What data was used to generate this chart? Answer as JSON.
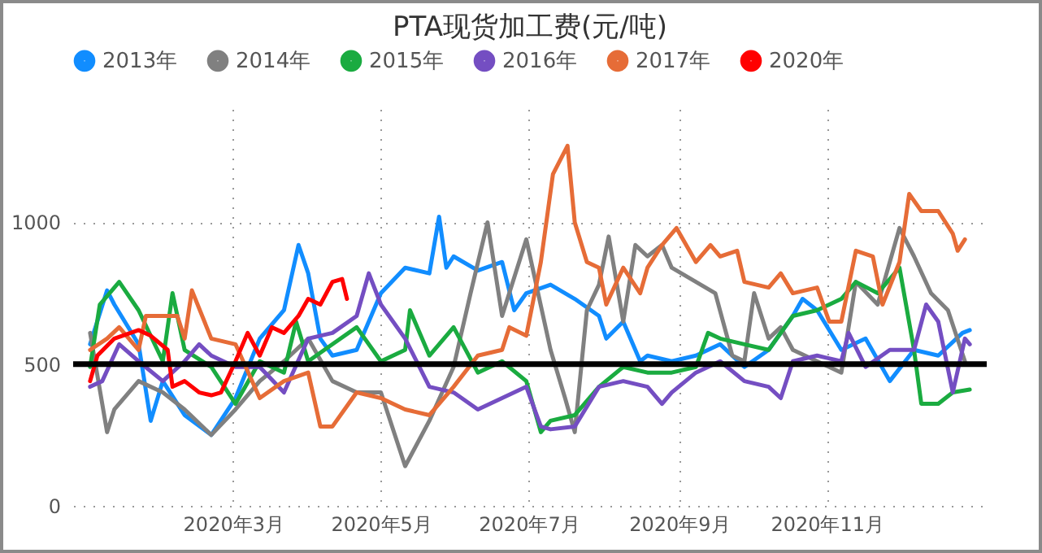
{
  "chart_data": {
    "type": "line",
    "title": "PTA现货加工费(元/吨)",
    "xlim": [
      "2019-12-26",
      "2021-01-06"
    ],
    "xticks": [
      {
        "value": "2020-03-01",
        "label": "2020年3月"
      },
      {
        "value": "2020-05-01",
        "label": "2020年5月"
      },
      {
        "value": "2020-07-01",
        "label": "2020年7月"
      },
      {
        "value": "2020-09-01",
        "label": "2020年9月"
      },
      {
        "value": "2020-11-01",
        "label": "2020年11月"
      }
    ],
    "ylim": [
      0,
      1400
    ],
    "yticks": [
      0,
      500,
      1000
    ],
    "grid": true,
    "legend": "top left",
    "marker": "none",
    "line_style": "solid",
    "ref_lines": [
      {
        "axis": "y",
        "value": 500,
        "color": "#000000"
      }
    ],
    "series": [
      {
        "name": "2013年",
        "color": "#118dff",
        "x": [
          "2020-01-02",
          "2020-01-09",
          "2020-01-12",
          "2020-01-22",
          "2020-01-27",
          "2020-02-01",
          "2020-02-10",
          "2020-02-21",
          "2020-03-02",
          "2020-03-12",
          "2020-03-22",
          "2020-03-28",
          "2020-04-01",
          "2020-04-06",
          "2020-04-11",
          "2020-04-21",
          "2020-05-01",
          "2020-05-11",
          "2020-05-21",
          "2020-05-25",
          "2020-05-28",
          "2020-05-31",
          "2020-06-10",
          "2020-06-20",
          "2020-06-25",
          "2020-06-30",
          "2020-07-10",
          "2020-07-20",
          "2020-07-30",
          "2020-08-02",
          "2020-08-09",
          "2020-08-16",
          "2020-08-19",
          "2020-08-29",
          "2020-09-08",
          "2020-09-18",
          "2020-09-28",
          "2020-10-08",
          "2020-10-18",
          "2020-10-22",
          "2020-10-28",
          "2020-11-07",
          "2020-11-17",
          "2020-11-27",
          "2020-12-07",
          "2020-12-17",
          "2020-12-27",
          "2020-12-30"
        ],
        "values": [
          570,
          760,
          710,
          570,
          300,
          440,
          320,
          250,
          380,
          590,
          690,
          920,
          820,
          590,
          530,
          550,
          750,
          840,
          820,
          1020,
          840,
          880,
          830,
          860,
          690,
          750,
          780,
          730,
          670,
          590,
          650,
          510,
          530,
          510,
          530,
          570,
          490,
          550,
          670,
          730,
          690,
          550,
          590,
          440,
          550,
          530,
          610,
          620
        ]
      },
      {
        "name": "2014年",
        "color": "#808080",
        "x": [
          "2020-01-02",
          "2020-01-09",
          "2020-01-12",
          "2020-01-22",
          "2020-02-01",
          "2020-02-10",
          "2020-02-21",
          "2020-03-02",
          "2020-03-12",
          "2020-03-22",
          "2020-04-01",
          "2020-04-11",
          "2020-04-21",
          "2020-05-01",
          "2020-05-11",
          "2020-05-21",
          "2020-05-31",
          "2020-06-07",
          "2020-06-14",
          "2020-06-20",
          "2020-06-30",
          "2020-07-10",
          "2020-07-16",
          "2020-07-20",
          "2020-07-25",
          "2020-07-30",
          "2020-08-03",
          "2020-08-09",
          "2020-08-14",
          "2020-08-19",
          "2020-08-25",
          "2020-08-29",
          "2020-09-08",
          "2020-09-16",
          "2020-09-23",
          "2020-09-28",
          "2020-10-02",
          "2020-10-08",
          "2020-10-13",
          "2020-10-18",
          "2020-10-28",
          "2020-11-07",
          "2020-11-13",
          "2020-11-22",
          "2020-12-01",
          "2020-12-07",
          "2020-12-14",
          "2020-12-21",
          "2020-12-28"
        ],
        "values": [
          610,
          260,
          340,
          440,
          400,
          340,
          250,
          340,
          440,
          510,
          590,
          440,
          400,
          400,
          140,
          300,
          490,
          750,
          1000,
          670,
          940,
          550,
          380,
          260,
          690,
          780,
          950,
          650,
          920,
          880,
          920,
          840,
          790,
          750,
          530,
          510,
          750,
          590,
          630,
          550,
          510,
          470,
          790,
          710,
          980,
          880,
          750,
          690,
          510
        ]
      },
      {
        "name": "2015年",
        "color": "#1aab40",
        "x": [
          "2020-01-02",
          "2020-01-06",
          "2020-01-14",
          "2020-01-22",
          "2020-02-01",
          "2020-02-05",
          "2020-02-10",
          "2020-02-21",
          "2020-03-02",
          "2020-03-12",
          "2020-03-22",
          "2020-03-27",
          "2020-04-01",
          "2020-04-11",
          "2020-04-21",
          "2020-05-01",
          "2020-05-11",
          "2020-05-13",
          "2020-05-21",
          "2020-05-31",
          "2020-06-10",
          "2020-06-20",
          "2020-06-30",
          "2020-07-06",
          "2020-07-10",
          "2020-07-20",
          "2020-07-30",
          "2020-08-09",
          "2020-08-19",
          "2020-08-29",
          "2020-09-08",
          "2020-09-13",
          "2020-09-18",
          "2020-09-28",
          "2020-10-08",
          "2020-10-18",
          "2020-10-28",
          "2020-11-07",
          "2020-11-13",
          "2020-11-22",
          "2020-12-01",
          "2020-12-07",
          "2020-12-10",
          "2020-12-17",
          "2020-12-23",
          "2020-12-30"
        ],
        "values": [
          490,
          710,
          790,
          690,
          510,
          750,
          550,
          490,
          360,
          510,
          470,
          650,
          510,
          570,
          630,
          510,
          550,
          690,
          530,
          630,
          470,
          510,
          440,
          260,
          300,
          320,
          420,
          490,
          470,
          470,
          490,
          610,
          590,
          570,
          550,
          670,
          690,
          730,
          790,
          750,
          840,
          550,
          360,
          360,
          400,
          410
        ]
      },
      {
        "name": "2016年",
        "color": "#744ec2",
        "x": [
          "2020-01-02",
          "2020-01-07",
          "2020-01-14",
          "2020-01-22",
          "2020-02-01",
          "2020-02-10",
          "2020-02-16",
          "2020-02-21",
          "2020-03-02",
          "2020-03-12",
          "2020-03-22",
          "2020-04-01",
          "2020-04-11",
          "2020-04-21",
          "2020-04-26",
          "2020-05-01",
          "2020-05-11",
          "2020-05-21",
          "2020-05-31",
          "2020-06-10",
          "2020-06-20",
          "2020-06-30",
          "2020-07-06",
          "2020-07-10",
          "2020-07-20",
          "2020-07-30",
          "2020-08-09",
          "2020-08-19",
          "2020-08-25",
          "2020-08-29",
          "2020-09-08",
          "2020-09-18",
          "2020-09-28",
          "2020-10-08",
          "2020-10-13",
          "2020-10-18",
          "2020-10-28",
          "2020-11-07",
          "2020-11-10",
          "2020-11-17",
          "2020-11-27",
          "2020-12-07",
          "2020-12-12",
          "2020-12-17",
          "2020-12-23",
          "2020-12-28",
          "2020-12-30"
        ],
        "values": [
          420,
          440,
          570,
          510,
          440,
          510,
          570,
          530,
          490,
          490,
          400,
          590,
          610,
          670,
          820,
          710,
          590,
          420,
          400,
          340,
          380,
          420,
          280,
          270,
          280,
          420,
          440,
          420,
          360,
          400,
          470,
          510,
          440,
          420,
          380,
          510,
          530,
          510,
          610,
          490,
          550,
          550,
          710,
          650,
          400,
          590,
          570
        ]
      },
      {
        "name": "2017年",
        "color": "#e66c37",
        "x": [
          "2020-01-02",
          "2020-01-09",
          "2020-01-14",
          "2020-01-22",
          "2020-01-25",
          "2020-02-01",
          "2020-02-07",
          "2020-02-10",
          "2020-02-13",
          "2020-02-21",
          "2020-03-02",
          "2020-03-12",
          "2020-03-22",
          "2020-04-01",
          "2020-04-06",
          "2020-04-11",
          "2020-04-21",
          "2020-05-01",
          "2020-05-11",
          "2020-05-21",
          "2020-05-31",
          "2020-06-10",
          "2020-06-20",
          "2020-06-23",
          "2020-06-30",
          "2020-07-06",
          "2020-07-11",
          "2020-07-17",
          "2020-07-20",
          "2020-07-25",
          "2020-07-30",
          "2020-08-02",
          "2020-08-09",
          "2020-08-16",
          "2020-08-19",
          "2020-08-25",
          "2020-08-31",
          "2020-09-08",
          "2020-09-14",
          "2020-09-18",
          "2020-09-25",
          "2020-09-28",
          "2020-10-08",
          "2020-10-13",
          "2020-10-18",
          "2020-10-28",
          "2020-11-02",
          "2020-11-07",
          "2020-11-13",
          "2020-11-20",
          "2020-11-24",
          "2020-12-01",
          "2020-12-05",
          "2020-12-10",
          "2020-12-17",
          "2020-12-23",
          "2020-12-25",
          "2020-12-28"
        ],
        "values": [
          550,
          590,
          630,
          550,
          670,
          670,
          670,
          590,
          760,
          590,
          570,
          380,
          440,
          470,
          280,
          280,
          400,
          380,
          340,
          320,
          420,
          530,
          550,
          630,
          600,
          860,
          1170,
          1270,
          1000,
          860,
          840,
          710,
          840,
          750,
          840,
          920,
          980,
          860,
          920,
          880,
          900,
          790,
          770,
          820,
          750,
          770,
          650,
          650,
          900,
          880,
          710,
          860,
          1100,
          1040,
          1040,
          960,
          900,
          940
        ]
      },
      {
        "name": "2020年",
        "color": "#ff0000",
        "x": [
          "2020-01-02",
          "2020-01-05",
          "2020-01-12",
          "2020-01-22",
          "2020-01-27",
          "2020-02-03",
          "2020-02-05",
          "2020-02-10",
          "2020-02-16",
          "2020-02-21",
          "2020-02-25",
          "2020-03-02",
          "2020-03-07",
          "2020-03-12",
          "2020-03-17",
          "2020-03-22",
          "2020-03-28",
          "2020-04-01",
          "2020-04-06",
          "2020-04-11",
          "2020-04-15",
          "2020-04-17"
        ],
        "values": [
          440,
          530,
          590,
          620,
          600,
          550,
          420,
          440,
          400,
          390,
          400,
          510,
          610,
          530,
          630,
          610,
          670,
          730,
          710,
          790,
          800,
          730
        ]
      }
    ]
  }
}
